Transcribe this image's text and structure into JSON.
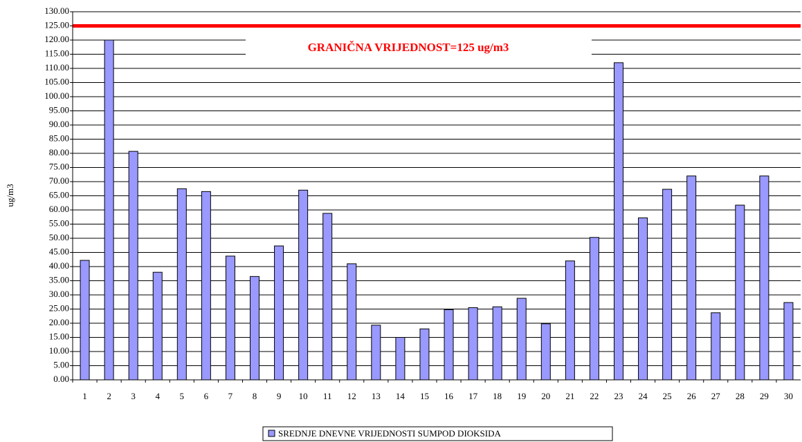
{
  "chart_data": {
    "type": "bar",
    "y_label": "ug/m3",
    "categories": [
      "1",
      "2",
      "3",
      "4",
      "5",
      "6",
      "7",
      "8",
      "9",
      "10",
      "11",
      "12",
      "13",
      "14",
      "15",
      "16",
      "17",
      "18",
      "19",
      "20",
      "21",
      "22",
      "23",
      "24",
      "25",
      "26",
      "27",
      "28",
      "29",
      "30"
    ],
    "series": [
      {
        "name": "SREDNJE DNEVNE VRIJEDNOSTI SUMPOD DIOKSIDA",
        "color": "#9999ff",
        "values": [
          42.2,
          120,
          80.7,
          38,
          67.5,
          66.5,
          43.7,
          36.5,
          47.3,
          67,
          58.8,
          41,
          19.3,
          15,
          18,
          24.8,
          25.5,
          25.8,
          28.8,
          19.8,
          42,
          50.3,
          112,
          57.2,
          67.3,
          72,
          23.7,
          61.7,
          72,
          27.3
        ]
      }
    ],
    "threshold": {
      "value": 125,
      "color": "#ff0000",
      "label": "GRANIČNA VRIJEDNOST=125 ug/m3"
    },
    "ylim": [
      0,
      130
    ],
    "yticks": [
      {
        "value": 0,
        "label": "0.00"
      },
      {
        "value": 5,
        "label": "5.00"
      },
      {
        "value": 10,
        "label": "10.00"
      },
      {
        "value": 15,
        "label": "15.00"
      },
      {
        "value": 20,
        "label": "20.00"
      },
      {
        "value": 25,
        "label": "25.00"
      },
      {
        "value": 30,
        "label": "30.00"
      },
      {
        "value": 35,
        "label": "35.00"
      },
      {
        "value": 40,
        "label": "40.00"
      },
      {
        "value": 45,
        "label": "45.00"
      },
      {
        "value": 50,
        "label": "50.00"
      },
      {
        "value": 55,
        "label": "55.00"
      },
      {
        "value": 60,
        "label": "60.00"
      },
      {
        "value": 65,
        "label": "65.00"
      },
      {
        "value": 70,
        "label": "70.00"
      },
      {
        "value": 75,
        "label": "75.00"
      },
      {
        "value": 80,
        "label": "80.00"
      },
      {
        "value": 85,
        "label": "85.00"
      },
      {
        "value": 90,
        "label": "90.00"
      },
      {
        "value": 95,
        "label": "95.00"
      },
      {
        "value": 100,
        "label": "100.00"
      },
      {
        "value": 105,
        "label": "105.00"
      },
      {
        "value": 110,
        "label": "110.00"
      },
      {
        "value": 115,
        "label": "115.00"
      },
      {
        "value": 120,
        "label": "120.00"
      },
      {
        "value": 125,
        "label": "125.00"
      },
      {
        "value": 130,
        "label": "130.00"
      }
    ],
    "grid": true,
    "legend": "bottom"
  }
}
